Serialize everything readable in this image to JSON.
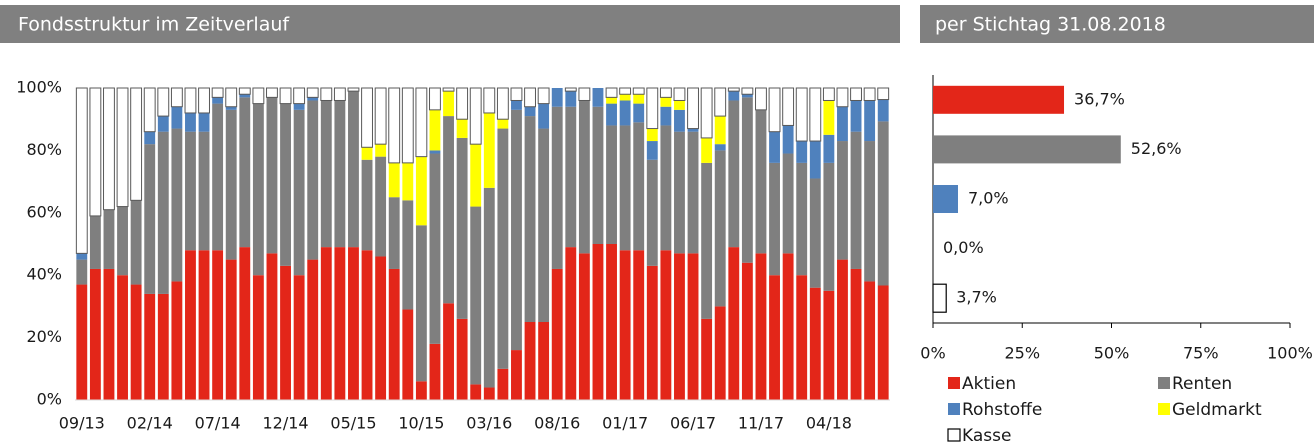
{
  "chart_data": [
    {
      "type": "stacked_bar",
      "title": "Fondsstruktur im Zeitverlauf",
      "categories": [
        "09/13",
        null,
        null,
        null,
        null,
        "02/14",
        null,
        null,
        null,
        null,
        "07/14",
        null,
        null,
        null,
        null,
        "12/14",
        null,
        null,
        null,
        null,
        "05/15",
        null,
        null,
        null,
        null,
        "10/15",
        null,
        null,
        null,
        null,
        "03/16",
        null,
        null,
        null,
        null,
        "08/16",
        null,
        null,
        null,
        null,
        "01/17",
        null,
        null,
        null,
        null,
        "06/17",
        null,
        null,
        null,
        null,
        "11/17",
        null,
        null,
        null,
        null,
        "04/18",
        null,
        null,
        null,
        null
      ],
      "series": [
        {
          "name": "Aktien",
          "color": "#e32619",
          "values": [
            37,
            42,
            42,
            40,
            37,
            34,
            34,
            38,
            48,
            48,
            48,
            45,
            49,
            40,
            47,
            43,
            40,
            45,
            49,
            49,
            49,
            48,
            46,
            42,
            29,
            6,
            18,
            31,
            26,
            5,
            4,
            10,
            16,
            25,
            25,
            42,
            49,
            47,
            50,
            50,
            48,
            48,
            43,
            48,
            47,
            47,
            26,
            30,
            49,
            44,
            47,
            40,
            47,
            40,
            36,
            35,
            45,
            42,
            38,
            36.7
          ]
        },
        {
          "name": "Renten",
          "color": "#7f7f7f",
          "values": [
            8,
            17,
            19,
            22,
            27,
            48,
            52,
            49,
            38,
            38,
            47,
            48,
            48,
            55,
            50,
            52,
            53,
            51,
            47,
            47,
            50,
            29,
            32,
            23,
            35,
            50,
            61,
            60,
            58,
            57,
            64,
            77,
            77,
            66,
            62,
            52,
            45,
            49,
            44,
            38,
            40,
            41,
            34,
            40,
            39,
            39,
            50,
            50,
            47,
            53,
            46,
            36,
            32,
            36,
            35,
            41,
            38,
            44,
            45,
            52.6
          ]
        },
        {
          "name": "Rohstoffe",
          "color": "#4f81bd",
          "values": [
            2,
            0,
            0,
            0,
            0,
            4,
            5,
            7,
            6,
            6,
            2,
            1,
            1,
            0,
            0,
            0,
            2,
            1,
            0,
            0,
            0,
            0,
            0,
            0,
            0,
            0,
            1,
            0,
            0,
            0,
            0,
            0,
            3,
            3,
            8,
            6,
            5,
            0,
            6,
            7,
            8,
            6,
            6,
            6,
            7,
            1,
            0,
            2,
            3,
            1,
            0,
            10,
            9,
            7,
            12,
            9,
            11,
            10,
            13,
            7.0
          ]
        },
        {
          "name": "Geldmarkt",
          "color": "#ffff00",
          "values": [
            0,
            0,
            0,
            0,
            0,
            0,
            0,
            0,
            0,
            0,
            0,
            0,
            0,
            0,
            0,
            0,
            0,
            0,
            0,
            0,
            0,
            4,
            4,
            11,
            12,
            22,
            13,
            8,
            6,
            20,
            24,
            3,
            0,
            0,
            0,
            0,
            0,
            0,
            0,
            2,
            2,
            3,
            4,
            3,
            3,
            0,
            8,
            9,
            0,
            0,
            0,
            0,
            0,
            0,
            0,
            11,
            0,
            0,
            0,
            0
          ]
        },
        {
          "name": "Kasse",
          "color": "#ffffff",
          "values": [
            53,
            41,
            39,
            38,
            36,
            14,
            9,
            6,
            8,
            8,
            3,
            6,
            2,
            5,
            3,
            5,
            5,
            3,
            4,
            4,
            1,
            19,
            18,
            24,
            24,
            22,
            7,
            1,
            10,
            18,
            8,
            10,
            4,
            6,
            5,
            0,
            1,
            4,
            0,
            3,
            2,
            2,
            13,
            3,
            4,
            13,
            16,
            9,
            1,
            2,
            7,
            14,
            12,
            17,
            17,
            4,
            6,
            4,
            4,
            3.7
          ]
        }
      ],
      "ylim": [
        0,
        100
      ],
      "yticks": [
        {
          "value": 0,
          "label": "0%"
        },
        {
          "value": 20,
          "label": "20%"
        },
        {
          "value": 40,
          "label": "40%"
        },
        {
          "value": 60,
          "label": "60%"
        },
        {
          "value": 80,
          "label": "80%"
        },
        {
          "value": 100,
          "label": "100%"
        }
      ]
    },
    {
      "type": "hbar",
      "title": "per Stichtag 31.08.2018",
      "values": [
        36.7,
        52.6,
        7.0,
        0.0,
        3.7
      ],
      "value_labels": [
        "36,7%",
        "52,6%",
        "7,0%",
        "0,0%",
        "3,7%"
      ],
      "xlim": [
        0,
        100
      ],
      "xticks": [
        {
          "value": 0,
          "label": "0%"
        },
        {
          "value": 25,
          "label": "25%"
        },
        {
          "value": 50,
          "label": "50%"
        },
        {
          "value": 75,
          "label": "75%"
        },
        {
          "value": 100,
          "label": "100%"
        }
      ]
    }
  ]
}
